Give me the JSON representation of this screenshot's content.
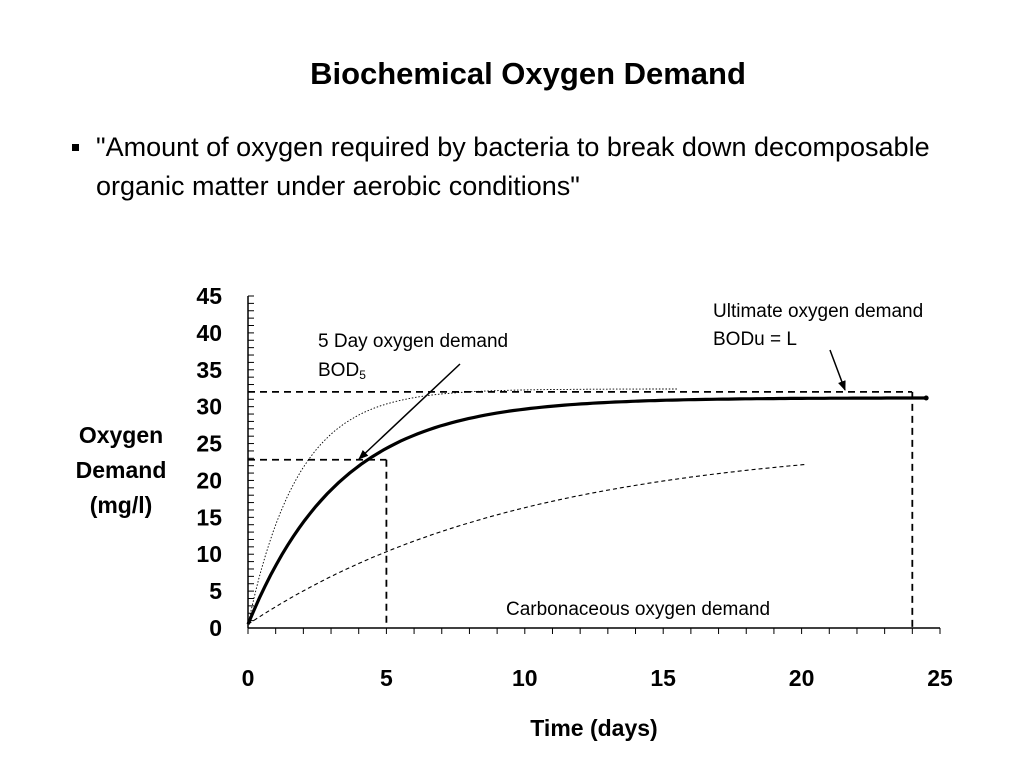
{
  "slide": {
    "title": "Biochemical Oxygen Demand",
    "bullet": "\"Amount of oxygen required by bacteria to break down decomposable organic matter under aerobic conditions\""
  },
  "chart_data": {
    "type": "line",
    "title": "",
    "xlabel": "Time (days)",
    "ylabel_lines": [
      "Oxygen",
      "Demand",
      "(mg/l)"
    ],
    "xlim": [
      0,
      25
    ],
    "ylim": [
      0,
      45
    ],
    "x_ticks": [
      "0",
      "5",
      "10",
      "15",
      "20",
      "25"
    ],
    "y_ticks": [
      "45",
      "40",
      "35",
      "30",
      "25",
      "20",
      "15",
      "10",
      "5",
      "0"
    ],
    "grid": false,
    "series": [
      {
        "style": "solid-thick",
        "L": 31.2,
        "k": 0.3,
        "y0": 0.5,
        "x_end": 24.5
      },
      {
        "style": "dotted-thin",
        "L": 32.4,
        "k": 0.55,
        "y0": 0.5,
        "x_end": 15.5
      },
      {
        "style": "dashed-thin",
        "L": 25.5,
        "k": 0.1,
        "y0": 0.5,
        "x_end": 20.2
      }
    ],
    "reference_lines": {
      "bod5_value": 22.8,
      "bod5_day": 5,
      "bodu_value": 32,
      "bodu_day": 24
    },
    "annotations": {
      "bod5_line1": "5 Day  oxygen demand",
      "bod5_line2_main": "BOD",
      "bod5_line2_sub": "5",
      "ultimate_line1": "Ultimate oxygen demand",
      "ultimate_line2": "BODu = L",
      "carbonaceous": "Carbonaceous oxygen demand"
    }
  }
}
